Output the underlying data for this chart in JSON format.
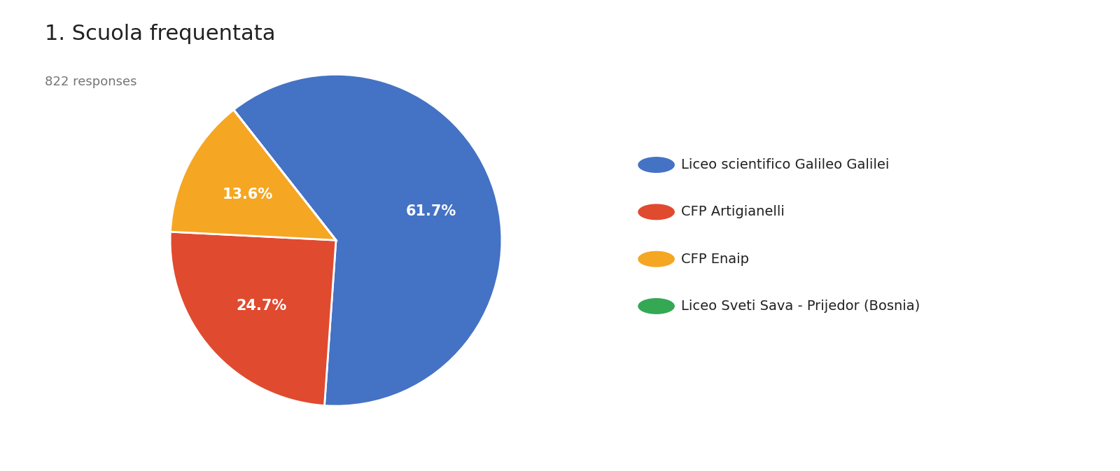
{
  "title": "1. Scuola frequentata",
  "subtitle": "822 responses",
  "labels": [
    "Liceo scientifico Galileo Galilei",
    "CFP Artigianelli",
    "CFP Enaip",
    "Liceo Sveti Sava - Prijedor (Bosnia)"
  ],
  "values": [
    61.7,
    24.7,
    13.6,
    0.0001
  ],
  "colors": [
    "#4472C4",
    "#E04A2F",
    "#F5A623",
    "#34A853"
  ],
  "pct_labels": [
    "61.7%",
    "24.7%",
    "13.6%",
    ""
  ],
  "background_color": "#ffffff",
  "title_fontsize": 22,
  "subtitle_fontsize": 13,
  "legend_fontsize": 14,
  "pct_fontsize": 15,
  "wedge_linewidth": 2,
  "startangle": 128.12
}
